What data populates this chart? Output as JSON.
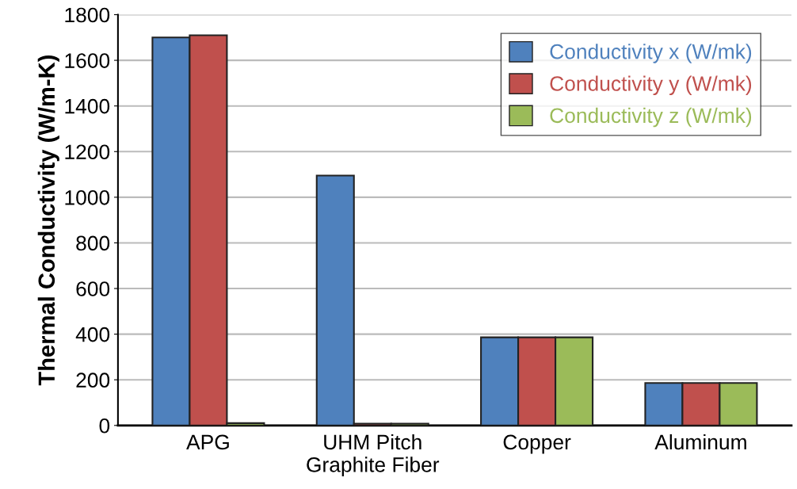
{
  "chart_data": {
    "type": "bar",
    "ylabel": "Thermal Conductivity (W/m-K)",
    "categories": [
      "APG",
      "UHM Pitch\nGraphite Fiber",
      "Copper",
      "Aluminum"
    ],
    "series": [
      {
        "name": "Conductivity x (W/mk)",
        "color": "#4f81bd",
        "values": [
          1700,
          1095,
          386,
          186
        ]
      },
      {
        "name": "Conductivity y (W/mk)",
        "color": "#c0504d",
        "values": [
          1710,
          8,
          386,
          186
        ]
      },
      {
        "name": "Conductivity z (W/mk)",
        "color": "#9bbb59",
        "values": [
          10,
          8,
          386,
          186
        ]
      }
    ],
    "ylim": [
      0,
      1800
    ],
    "yticks": [
      0,
      200,
      400,
      600,
      800,
      1000,
      1200,
      1400,
      1600,
      1800
    ],
    "grid": "y",
    "legend": "top right"
  }
}
